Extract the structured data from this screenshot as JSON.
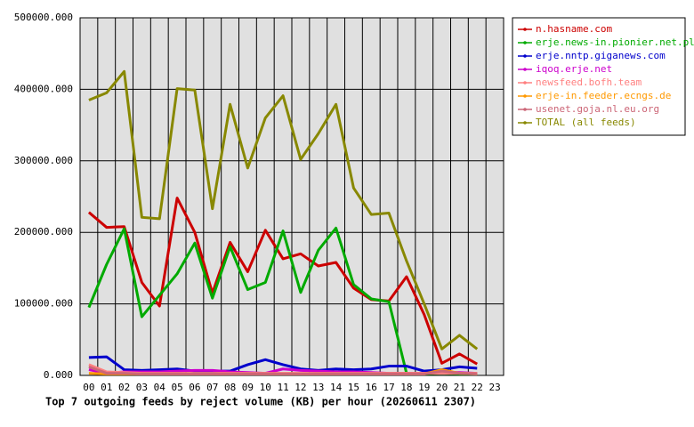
{
  "chart_data": {
    "type": "line",
    "title": "Top 7 outgoing feeds by reject volume (KB) per hour (20260611 2307)",
    "categories": [
      "00",
      "01",
      "02",
      "03",
      "04",
      "05",
      "06",
      "07",
      "08",
      "09",
      "10",
      "11",
      "12",
      "13",
      "14",
      "15",
      "16",
      "17",
      "18",
      "19",
      "20",
      "21",
      "22",
      "23"
    ],
    "ylim": [
      0,
      500000
    ],
    "yticks": [
      {
        "value": 0,
        "label": "0.000"
      },
      {
        "value": 100000,
        "label": "100000.000"
      },
      {
        "value": 200000,
        "label": "200000.000"
      },
      {
        "value": 300000,
        "label": "300000.000"
      },
      {
        "value": 400000,
        "label": "400000.000"
      },
      {
        "value": 500000,
        "label": "500000.000"
      }
    ],
    "grid": true,
    "legend": "right",
    "series": [
      {
        "name": "n.hasname.com",
        "color": "#cc0000",
        "values": [
          228000,
          207000,
          208000,
          130000,
          97000,
          248000,
          200000,
          115000,
          186000,
          145000,
          203000,
          163000,
          170000,
          153000,
          158000,
          122000,
          106000,
          104000,
          138000,
          85000,
          17000,
          30000,
          16000,
          null
        ]
      },
      {
        "name": "erje.news-in.pionier.net.pl",
        "color": "#00aa00",
        "values": [
          95000,
          155000,
          205000,
          82000,
          112000,
          142000,
          185000,
          108000,
          180000,
          120000,
          130000,
          202000,
          116000,
          175000,
          206000,
          127000,
          107000,
          103000,
          3000,
          2000,
          3000,
          2000,
          2000,
          null
        ]
      },
      {
        "name": "erje.nntp.giganews.com",
        "color": "#0000cc",
        "values": [
          25000,
          26000,
          8000,
          7000,
          8000,
          9000,
          6000,
          6000,
          6000,
          15000,
          22000,
          15000,
          9000,
          7000,
          9000,
          8000,
          9000,
          13000,
          13000,
          6000,
          8000,
          12000,
          10000,
          null
        ]
      },
      {
        "name": "iqoq.erje.net",
        "color": "#cc00cc",
        "values": [
          8000,
          3000,
          5000,
          5000,
          5000,
          6000,
          7000,
          7000,
          5000,
          4000,
          3000,
          9000,
          7000,
          6000,
          5000,
          5000,
          4000,
          3000,
          3000,
          3000,
          5000,
          4000,
          3000,
          null
        ]
      },
      {
        "name": "newsfeed.bofh.team",
        "color": "#ff8080",
        "values": [
          15000,
          5000,
          4000,
          3000,
          3000,
          3000,
          3000,
          3000,
          3000,
          3000,
          3000,
          3000,
          3000,
          3000,
          3000,
          3000,
          3000,
          3000,
          3000,
          3000,
          3000,
          3000,
          3000,
          null
        ]
      },
      {
        "name": "erje-in.feeder.ecngs.de",
        "color": "#ff9900",
        "values": [
          3000,
          2000,
          2000,
          2000,
          2000,
          2000,
          2000,
          2000,
          2000,
          2000,
          2000,
          2000,
          2000,
          2000,
          2000,
          2000,
          2000,
          2000,
          2000,
          2000,
          8000,
          3000,
          2000,
          null
        ]
      },
      {
        "name": "usenet.goja.nl.eu.org",
        "color": "#cc6677",
        "values": [
          12000,
          3000,
          3000,
          2000,
          2000,
          2000,
          2000,
          2000,
          2000,
          2000,
          2000,
          2000,
          2000,
          2000,
          2000,
          2000,
          2000,
          2000,
          2000,
          2000,
          6000,
          3000,
          2000,
          null
        ]
      },
      {
        "name": "TOTAL (all feeds)",
        "color": "#888800",
        "values": [
          385000,
          395000,
          425000,
          221000,
          219000,
          401000,
          399000,
          233000,
          379000,
          290000,
          360000,
          391000,
          302000,
          338000,
          379000,
          262000,
          225000,
          227000,
          160000,
          100000,
          37000,
          56000,
          37000,
          null
        ]
      }
    ]
  }
}
